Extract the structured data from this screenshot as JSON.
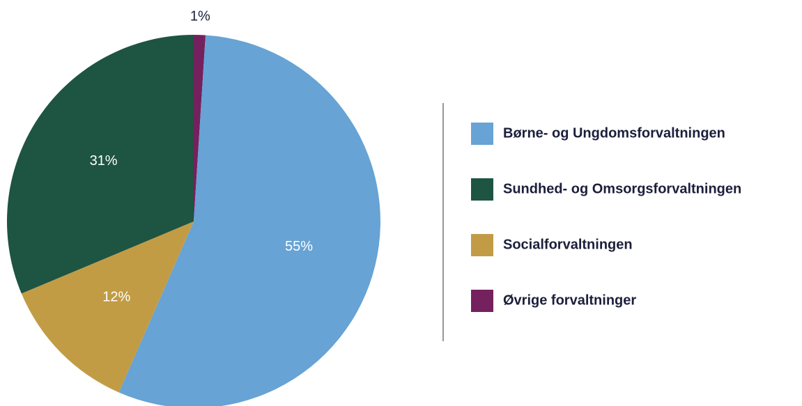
{
  "chart_data": {
    "type": "pie",
    "categories": [
      "Børne- og Ungdomsforvaltningen",
      "Sundhed- og Omsorgsforvaltningen",
      "Socialforvaltningen",
      "Øvrige forvaltninger"
    ],
    "values": [
      55,
      31,
      12,
      1
    ],
    "value_labels": [
      "55%",
      "31%",
      "12%",
      "1%"
    ],
    "colors": [
      "#67a3d4",
      "#1e5442",
      "#c29c45",
      "#74215e"
    ]
  }
}
